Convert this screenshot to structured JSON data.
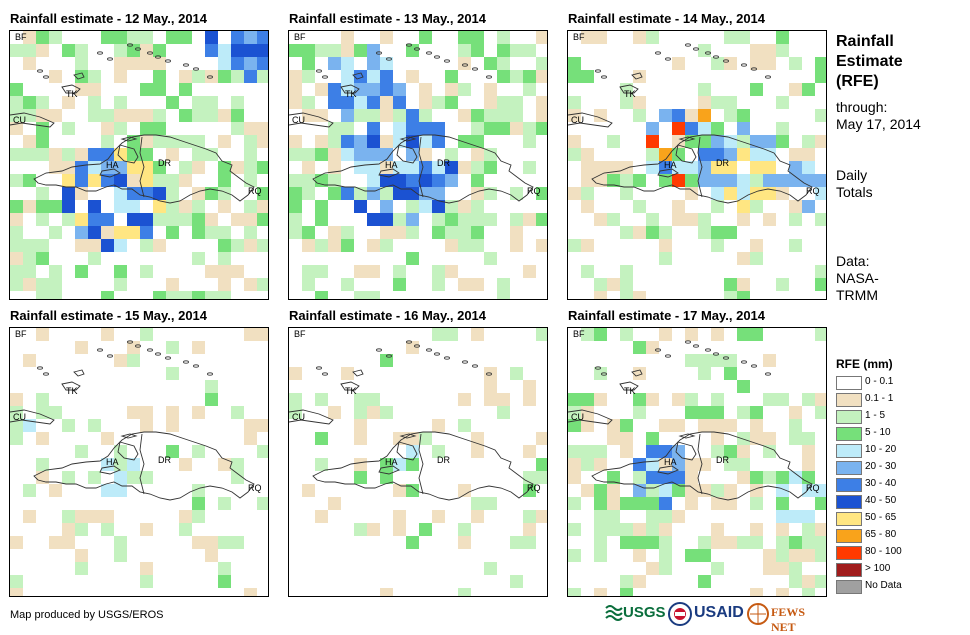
{
  "panels": [
    {
      "title": "Rainfall estimate - 12 May., 2014"
    },
    {
      "title": "Rainfall estimate - 13 May., 2014"
    },
    {
      "title": "Rainfall estimate - 14 May., 2014"
    },
    {
      "title": "Rainfall estimate - 15 May., 2014"
    },
    {
      "title": "Rainfall estimate - 16 May., 2014"
    },
    {
      "title": "Rainfall estimate - 17 May., 2014"
    }
  ],
  "map_labels": {
    "bf": "BF",
    "cu": "CU",
    "tk": "TK",
    "ha": "HA",
    "dr": "DR",
    "rq": "RQ"
  },
  "side": {
    "title_lines": [
      "Rainfall",
      "Estimate",
      "(RFE)"
    ],
    "through_lines": [
      "through:",
      "May 17, 2014"
    ],
    "totals_lines": [
      "Daily",
      "Totals"
    ],
    "data_lines": [
      "Data:",
      "NASA-",
      "TRMM"
    ]
  },
  "legend": {
    "title": "RFE (mm)",
    "items": [
      {
        "label": "0 - 0.1",
        "color": "#ffffff"
      },
      {
        "label": "0.1 - 1",
        "color": "#f1e0c1"
      },
      {
        "label": "1 - 5",
        "color": "#c4f2bf"
      },
      {
        "label": "5 - 10",
        "color": "#76e07a"
      },
      {
        "label": "10 - 20",
        "color": "#bdebf9"
      },
      {
        "label": "20 - 30",
        "color": "#7ab3ef"
      },
      {
        "label": "30 - 40",
        "color": "#3d7fe6"
      },
      {
        "label": "40 - 50",
        "color": "#1b52d2"
      },
      {
        "label": "50 - 65",
        "color": "#ffe682"
      },
      {
        "label": "65 - 80",
        "color": "#f9a31b"
      },
      {
        "label": "80 - 100",
        "color": "#ff3a00"
      },
      {
        "label": "> 100",
        "color": "#a01c1c"
      },
      {
        "label": "No Data",
        "color": "#a0a0a0"
      }
    ]
  },
  "credit": "Map produced by USGS/EROS",
  "logos": {
    "usgs": "USGS",
    "usaid": "USAID",
    "fewsnet": "FEWS NET"
  }
}
